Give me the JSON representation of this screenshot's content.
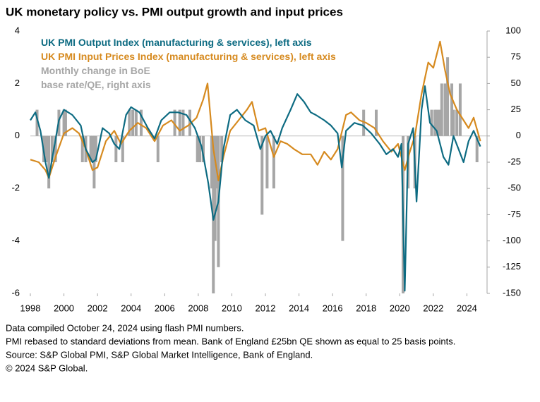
{
  "chart_data": {
    "type": "line",
    "title": "UK monetary policy vs. PMI output growth and input prices",
    "notes": [
      "Data compiled October 24, 2024 using flash PMI numbers.",
      "PMI rebased to standard deviations from mean. Bank of England £25bn QE shown as equal to 25 basis points.",
      "Source: S&P Global PMI, S&P Global Market Intelligence, Bank of England.",
      "© 2024 S&P Global."
    ],
    "xlim": [
      1998,
      2025.2
    ],
    "xticks": [
      1998,
      2000,
      2002,
      2004,
      2006,
      2008,
      2010,
      2012,
      2014,
      2016,
      2018,
      2020,
      2022,
      2024
    ],
    "ylim": [
      -6,
      4
    ],
    "yticks": [
      4,
      2,
      0,
      -2,
      -4,
      -6
    ],
    "y2lim": [
      -150,
      100
    ],
    "y2ticks": [
      100,
      75,
      50,
      25,
      0,
      -25,
      -50,
      -75,
      -100,
      -125,
      -150
    ],
    "series": [
      {
        "name": "Monthly change in BoE base rate/QE, right axis",
        "type": "bar",
        "axis": "y2",
        "color": "#a6a6a6",
        "x": [
          1998.4,
          1998.8,
          1998.95,
          1999.1,
          1999.3,
          1999.5,
          1999.7,
          2000.0,
          2000.1,
          2001.1,
          2001.3,
          2001.6,
          2001.7,
          2001.8,
          2001.9,
          2003.1,
          2003.5,
          2003.9,
          2004.1,
          2004.3,
          2004.6,
          2005.6,
          2006.6,
          2006.9,
          2007.1,
          2007.5,
          2007.95,
          2008.1,
          2008.3,
          2008.8,
          2008.9,
          2009.0,
          2009.1,
          2009.2,
          2009.4,
          2011.8,
          2012.1,
          2012.5,
          2016.6,
          2017.85,
          2018.6,
          2020.2,
          2020.5,
          2020.9,
          2021.9,
          2022.1,
          2022.2,
          2022.35,
          2022.5,
          2022.7,
          2022.85,
          2023.1,
          2023.2,
          2023.4,
          2023.6,
          2024.6
        ],
        "values": [
          25,
          -25,
          -25,
          -50,
          -25,
          -25,
          25,
          25,
          25,
          -25,
          -25,
          -25,
          -25,
          -50,
          -25,
          -25,
          -25,
          25,
          25,
          25,
          25,
          -25,
          25,
          25,
          25,
          25,
          -25,
          -25,
          -25,
          -50,
          -150,
          -100,
          -50,
          -125,
          -25,
          -75,
          -50,
          -50,
          -100,
          25,
          25,
          -150,
          -50,
          -50,
          25,
          25,
          25,
          25,
          50,
          50,
          75,
          50,
          25,
          25,
          50,
          -25
        ]
      },
      {
        "name": "UK PMI Input Prices Index (manufacturing & services), left axis",
        "type": "line",
        "color": "#d68a1f",
        "x": [
          1998.0,
          1998.5,
          1998.9,
          1999.1,
          1999.5,
          2000.0,
          2000.5,
          2000.9,
          2001.3,
          2001.7,
          2002.0,
          2002.5,
          2003.0,
          2003.4,
          2003.9,
          2004.4,
          2004.9,
          2005.4,
          2005.9,
          2006.4,
          2006.9,
          2007.4,
          2007.9,
          2008.3,
          2008.55,
          2008.9,
          2009.2,
          2009.5,
          2009.9,
          2010.4,
          2010.9,
          2011.2,
          2011.6,
          2012.0,
          2012.5,
          2012.9,
          2013.3,
          2013.7,
          2014.2,
          2014.7,
          2015.1,
          2015.5,
          2015.9,
          2016.3,
          2016.8,
          2017.1,
          2017.6,
          2018.0,
          2018.5,
          2019.0,
          2019.5,
          2019.9,
          2020.3,
          2020.6,
          2020.9,
          2021.3,
          2021.7,
          2022.0,
          2022.4,
          2022.7,
          2023.0,
          2023.4,
          2023.8,
          2024.1,
          2024.4,
          2024.8
        ],
        "values": [
          -0.9,
          -1.0,
          -1.3,
          -1.6,
          -0.8,
          0.1,
          0.3,
          0.1,
          -0.5,
          -1.3,
          -1.2,
          -0.2,
          0.2,
          -0.3,
          0.2,
          0.5,
          0.3,
          -0.2,
          0.4,
          0.6,
          0.2,
          0.4,
          0.7,
          1.4,
          2.0,
          -0.5,
          -1.7,
          -0.8,
          0.2,
          0.6,
          1.0,
          1.3,
          0.2,
          0.3,
          -0.8,
          -0.2,
          -0.3,
          -0.5,
          -0.7,
          -0.7,
          -1.1,
          -0.6,
          -0.9,
          -0.5,
          0.8,
          0.9,
          0.6,
          0.5,
          0.3,
          -0.2,
          -0.6,
          -0.3,
          -1.3,
          -0.6,
          0.0,
          1.6,
          2.8,
          2.6,
          3.6,
          2.5,
          1.6,
          1.0,
          0.6,
          0.3,
          0.7,
          -0.2
        ]
      },
      {
        "name": "UK PMI Output Index (manufacturing & services), left axis",
        "type": "line",
        "color": "#0d6b82",
        "x": [
          1998.0,
          1998.3,
          1998.6,
          1998.9,
          1999.1,
          1999.4,
          1999.7,
          2000.0,
          2000.5,
          2001.0,
          2001.3,
          2001.7,
          2001.9,
          2002.3,
          2002.7,
          2003.0,
          2003.3,
          2003.7,
          2004.0,
          2004.5,
          2005.0,
          2005.4,
          2005.8,
          2006.3,
          2006.8,
          2007.3,
          2007.8,
          2008.2,
          2008.6,
          2008.9,
          2009.2,
          2009.5,
          2009.9,
          2010.3,
          2010.8,
          2011.3,
          2011.7,
          2012.0,
          2012.3,
          2012.7,
          2013.0,
          2013.5,
          2013.9,
          2014.3,
          2014.7,
          2015.0,
          2015.5,
          2015.9,
          2016.3,
          2016.55,
          2016.8,
          2017.3,
          2017.8,
          2018.3,
          2018.8,
          2019.2,
          2019.6,
          2019.9,
          2020.1,
          2020.3,
          2020.5,
          2020.8,
          2021.0,
          2021.3,
          2021.5,
          2021.8,
          2022.2,
          2022.6,
          2022.9,
          2023.2,
          2023.5,
          2023.8,
          2024.1,
          2024.4,
          2024.8
        ],
        "values": [
          0.6,
          0.9,
          0.2,
          -1.0,
          -1.6,
          -0.5,
          0.6,
          1.0,
          0.8,
          0.4,
          -0.5,
          -1.0,
          -0.9,
          0.3,
          0.1,
          -0.3,
          -0.5,
          0.8,
          1.1,
          0.9,
          0.3,
          -0.1,
          0.6,
          0.9,
          0.9,
          0.8,
          0.3,
          -0.4,
          -1.8,
          -3.2,
          -2.5,
          -0.5,
          0.8,
          1.0,
          0.6,
          0.4,
          -0.5,
          0.0,
          0.2,
          -0.3,
          0.3,
          1.0,
          1.6,
          1.3,
          0.9,
          0.8,
          0.6,
          0.4,
          0.1,
          -1.2,
          0.2,
          0.5,
          0.4,
          0.1,
          -0.3,
          -0.7,
          -0.5,
          -0.8,
          -0.3,
          -5.9,
          -0.3,
          0.3,
          -2.5,
          1.0,
          1.9,
          0.5,
          0.2,
          -0.8,
          -1.1,
          0.0,
          -0.5,
          -1.0,
          -0.2,
          0.2,
          -0.4
        ]
      }
    ],
    "legend_order": [
      2,
      1,
      0
    ]
  }
}
